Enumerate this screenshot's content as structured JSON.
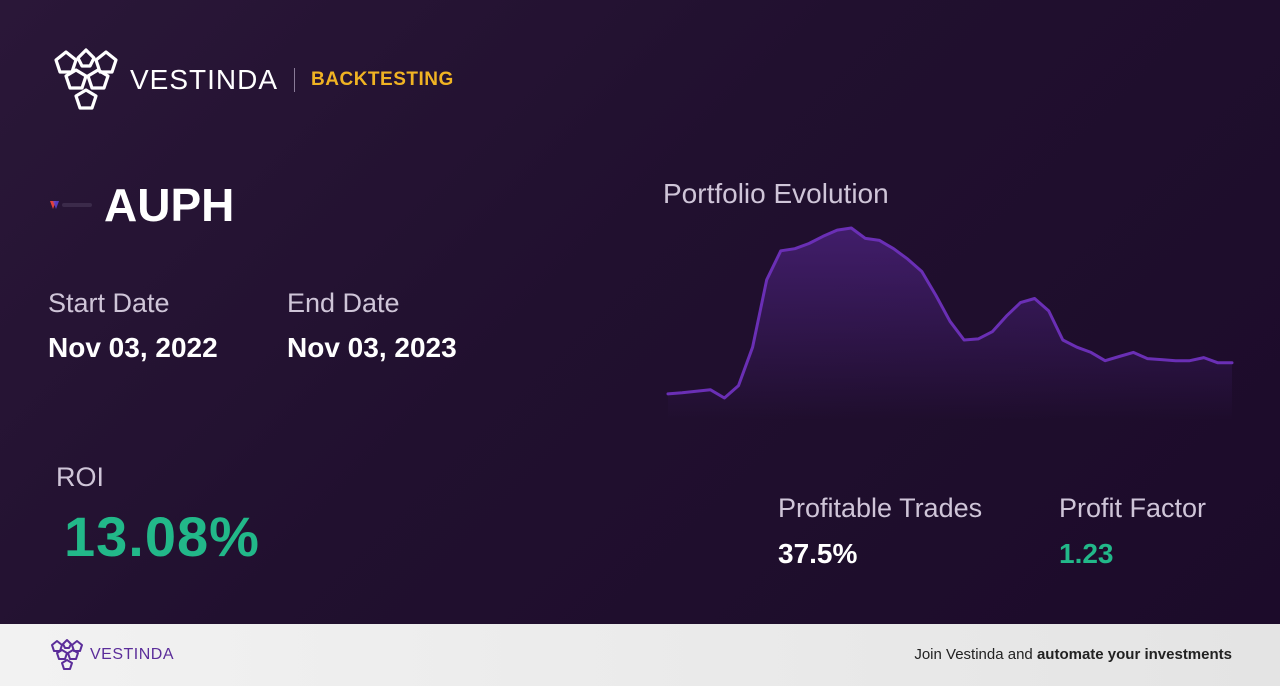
{
  "header": {
    "brand": "VESTINDA",
    "tag": "BACKTESTING"
  },
  "ticker": {
    "symbol": "AUPH",
    "icon": "ticker-logo-icon"
  },
  "dates": {
    "start_label": "Start Date",
    "start_value": "Nov 03, 2022",
    "end_label": "End Date",
    "end_value": "Nov 03, 2023"
  },
  "roi": {
    "label": "ROI",
    "value": "13.08%"
  },
  "metrics": {
    "profitable_label": "Profitable Trades",
    "profitable_value": "37.5%",
    "factor_label": "Profit Factor",
    "factor_value": "1.23"
  },
  "chart": {
    "title": "Portfolio Evolution",
    "line_color": "#6a2fb5",
    "chart_data": {
      "type": "line",
      "values": [
        10,
        11,
        12.5,
        14,
        6,
        18,
        55,
        120,
        148,
        150,
        155,
        162,
        168,
        170,
        160,
        158,
        150,
        140,
        128,
        105,
        80,
        62,
        63,
        70,
        85,
        98,
        102,
        90,
        62,
        55,
        50,
        42,
        46,
        50,
        44,
        43,
        42,
        42,
        45,
        40,
        40
      ]
    }
  },
  "footer": {
    "brand": "VESTINDA",
    "cta_prefix": "Join Vestinda and ",
    "cta_bold": "automate your investments"
  }
}
